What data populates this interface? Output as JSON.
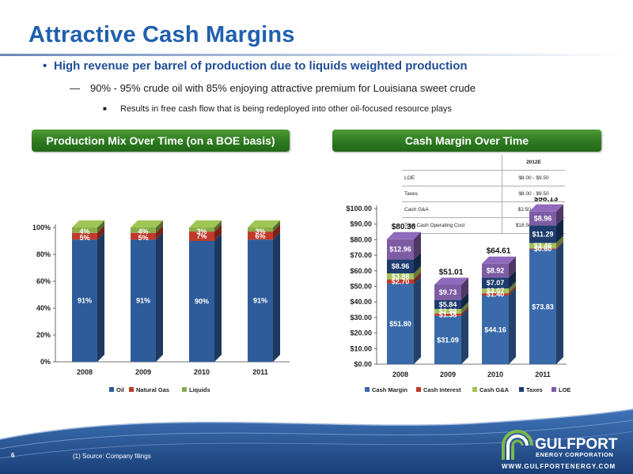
{
  "slide": {
    "title": "Attractive Cash Margins",
    "bullet1": "High revenue per barrel of production due to liquids weighted production",
    "bullet2": "90% - 95% crude oil with 85% enjoying attractive premium for Louisiana sweet crude",
    "bullet3": "Results in free cash flow that is being redeployed into other oil-focused resource plays",
    "page_number": "6",
    "footnote": "(1)    Source:  Company filings",
    "bullet_glyph": "•",
    "dash_glyph": "—",
    "square_glyph": "■"
  },
  "logo": {
    "name": "GULFPORT",
    "sub": "ENERGY CORPORATION",
    "url": "WWW.GULFPORTENERGY.COM"
  },
  "colors": {
    "title": "#1f5fae",
    "banner": "#2d7a20",
    "oil": "#2e5c9a",
    "gas": "#c0392b",
    "liquids": "#8aac4a",
    "cash_margin": "#3a6aaa",
    "cash_interest": "#c0392b",
    "cash_ga": "#a4c15a",
    "taxes": "#1e3c6e",
    "loe": "#7d5ca4"
  },
  "cost_table": {
    "header": "2012E",
    "rows": [
      {
        "label": "LOE",
        "value": "$8.00 - $9.50"
      },
      {
        "label": "Taxes",
        "value": "$8.00 - $9.50"
      },
      {
        "label": "Cash G&A",
        "value": "$2.50 – $3.50"
      },
      {
        "label": "Total Cash Operating Cost",
        "value": "$18.50 - $22.50"
      }
    ]
  },
  "chart_data": [
    {
      "type": "bar",
      "stacked": true,
      "title": "Production Mix Over Time (on a BOE basis)",
      "categories": [
        "2008",
        "2009",
        "2010",
        "2011"
      ],
      "ylim": [
        0,
        100
      ],
      "yticks": [
        "0%",
        "20%",
        "40%",
        "60%",
        "80%",
        "100%"
      ],
      "series": [
        {
          "name": "Oil",
          "values": [
            91,
            91,
            90,
            91
          ],
          "labels": [
            "91%",
            "91%",
            "90%",
            "91%"
          ]
        },
        {
          "name": "Natural Gas",
          "values": [
            5,
            5,
            7,
            6
          ],
          "labels": [
            "5%",
            "5%",
            "7%",
            "6%"
          ]
        },
        {
          "name": "Liquids",
          "values": [
            4,
            4,
            3,
            3
          ],
          "labels": [
            "4%",
            "4%",
            "3%",
            "3%"
          ]
        }
      ],
      "legend": "bottom"
    },
    {
      "type": "bar",
      "stacked": true,
      "title": "Cash Margin Over Time",
      "categories": [
        "2008",
        "2009",
        "2010",
        "2011"
      ],
      "ylim": [
        0,
        100
      ],
      "yticks": [
        "$0.00",
        "$10.00",
        "$20.00",
        "$30.00",
        "$40.00",
        "$50.00",
        "$60.00",
        "$70.00",
        "$80.00",
        "$90.00",
        "$100.00"
      ],
      "totals": [
        "$80.30",
        "$51.01",
        "$64.61",
        "$98.13"
      ],
      "series": [
        {
          "name": "Cash Margin",
          "values": [
            51.8,
            31.09,
            44.16,
            73.83
          ],
          "labels": [
            "$51.80",
            "$31.09",
            "$44.16",
            "$73.83"
          ]
        },
        {
          "name": "Cash Interest",
          "values": [
            2.7,
            1.38,
            1.4,
            0.6
          ],
          "labels": [
            "$2.70",
            "$1.38",
            "$1.40",
            "$0.60"
          ]
        },
        {
          "name": "Cash G&A",
          "values": [
            3.88,
            2.98,
            3.07,
            3.46
          ],
          "labels": [
            "$3.88",
            "$2.98",
            "$3.07",
            "$3.46"
          ]
        },
        {
          "name": "Taxes",
          "values": [
            8.96,
            5.84,
            7.07,
            11.29
          ],
          "labels": [
            "$8.96",
            "$5.84",
            "$7.07",
            "$11.29"
          ]
        },
        {
          "name": "LOE",
          "values": [
            12.96,
            9.73,
            8.92,
            8.96
          ],
          "labels": [
            "$12.96",
            "$9.73",
            "$8.92",
            "$8.96"
          ]
        }
      ],
      "legend": "bottom"
    }
  ]
}
